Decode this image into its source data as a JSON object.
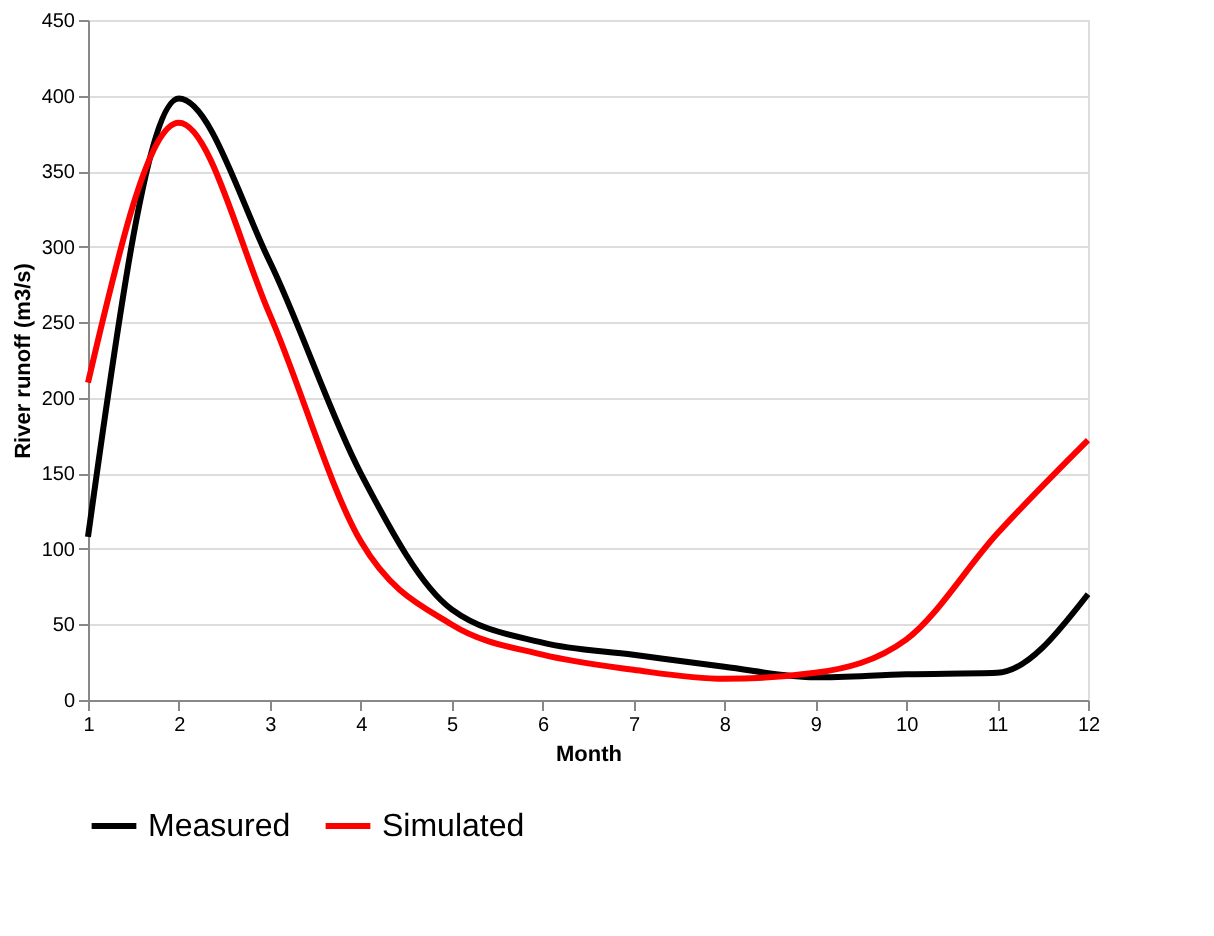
{
  "chart_data": {
    "type": "line",
    "xlabel": "Month",
    "ylabel": "River runoff (m3/s)",
    "x": [
      1,
      2,
      3,
      4,
      5,
      6,
      7,
      8,
      9,
      10,
      11,
      12
    ],
    "series": [
      {
        "name": "Measured",
        "color": "#000000",
        "values": [
          108,
          398,
          290,
          150,
          60,
          38,
          30,
          22,
          15,
          17,
          18,
          70
        ]
      },
      {
        "name": "Simulated",
        "color": "#ff0000",
        "values": [
          210,
          382,
          255,
          105,
          50,
          30,
          20,
          14,
          18,
          40,
          110,
          172
        ]
      }
    ],
    "xlim": [
      1,
      12
    ],
    "xticks": [
      1,
      2,
      3,
      4,
      5,
      6,
      7,
      8,
      9,
      10,
      11,
      12
    ],
    "ylim": [
      0,
      450
    ],
    "yticks": [
      0,
      50,
      100,
      150,
      200,
      250,
      300,
      350,
      400,
      450
    ],
    "grid": "y",
    "legend": "bottom",
    "marker": "none",
    "line_style": "solid"
  }
}
